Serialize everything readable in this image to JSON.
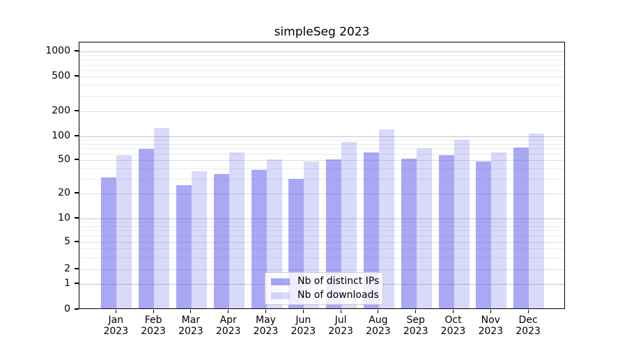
{
  "chart_data": {
    "type": "bar",
    "title": "simpleSeg 2023",
    "categories": [
      "Jan",
      "Feb",
      "Mar",
      "Apr",
      "May",
      "Jun",
      "Jul",
      "Aug",
      "Sep",
      "Oct",
      "Nov",
      "Dec"
    ],
    "x_tick_second_line": "2023",
    "series": [
      {
        "name": "Nb of distinct IPs",
        "color": "#5A5AEB",
        "opacity": 0.53,
        "values": [
          31,
          69,
          25,
          34,
          38,
          30,
          51,
          62,
          52,
          58,
          48,
          72
        ]
      },
      {
        "name": "Nb of downloads",
        "color": "#5A5AEB",
        "opacity": 0.23,
        "values": [
          58,
          125,
          37,
          63,
          51,
          48,
          85,
          122,
          70,
          90,
          63,
          107
        ]
      }
    ],
    "yticks": [
      0,
      1,
      2,
      5,
      10,
      20,
      50,
      100,
      200,
      500,
      1000
    ],
    "ylim": [
      0,
      1000
    ],
    "yscale": "symlog",
    "xlabel": "",
    "ylabel": "",
    "grid": true,
    "legend_position": "lower center",
    "colors": {
      "major_gridline": "#c6c6c6",
      "secondary_gridline": "#dedede",
      "minor_gridline": "#ebebeb",
      "axis": "#000000",
      "background": "#ffffff"
    }
  }
}
